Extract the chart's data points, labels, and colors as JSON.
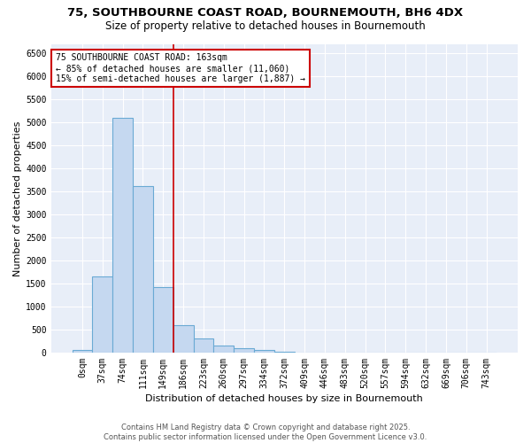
{
  "title_line1": "75, SOUTHBOURNE COAST ROAD, BOURNEMOUTH, BH6 4DX",
  "title_line2": "Size of property relative to detached houses in Bournemouth",
  "xlabel": "Distribution of detached houses by size in Bournemouth",
  "ylabel": "Number of detached properties",
  "categories": [
    "0sqm",
    "37sqm",
    "74sqm",
    "111sqm",
    "149sqm",
    "186sqm",
    "223sqm",
    "260sqm",
    "297sqm",
    "334sqm",
    "372sqm",
    "409sqm",
    "446sqm",
    "483sqm",
    "520sqm",
    "557sqm",
    "594sqm",
    "632sqm",
    "669sqm",
    "706sqm",
    "743sqm"
  ],
  "values": [
    50,
    1650,
    5100,
    3620,
    1420,
    600,
    310,
    155,
    95,
    60,
    20,
    5,
    2,
    0,
    0,
    0,
    0,
    0,
    0,
    0,
    0
  ],
  "bar_color": "#c5d8f0",
  "bar_edge_color": "#6aaad4",
  "vline_color": "#cc0000",
  "vline_pos": 4.5,
  "annotation_text": "75 SOUTHBOURNE COAST ROAD: 163sqm\n← 85% of detached houses are smaller (11,060)\n15% of semi-detached houses are larger (1,887) →",
  "annotation_box_color": "#cc0000",
  "ylim": [
    0,
    6700
  ],
  "yticks": [
    0,
    500,
    1000,
    1500,
    2000,
    2500,
    3000,
    3500,
    4000,
    4500,
    5000,
    5500,
    6000,
    6500
  ],
  "plot_bg_color": "#e8eef8",
  "fig_bg_color": "#ffffff",
  "grid_color": "#ffffff",
  "footer_text": "Contains HM Land Registry data © Crown copyright and database right 2025.\nContains public sector information licensed under the Open Government Licence v3.0.",
  "title_fontsize": 9.5,
  "subtitle_fontsize": 8.5,
  "axis_label_fontsize": 8,
  "tick_fontsize": 7,
  "annotation_fontsize": 7,
  "footer_fontsize": 6
}
